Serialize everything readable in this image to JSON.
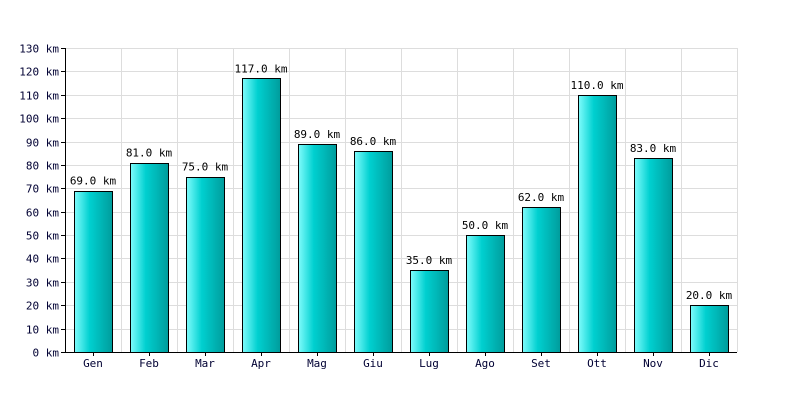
{
  "chart_data": {
    "type": "bar",
    "categories": [
      "Gen",
      "Feb",
      "Mar",
      "Apr",
      "Mag",
      "Giu",
      "Lug",
      "Ago",
      "Set",
      "Ott",
      "Nov",
      "Dic"
    ],
    "values": [
      69,
      81,
      75,
      117,
      89,
      86,
      35,
      50,
      62,
      110,
      83,
      20
    ],
    "data_labels": [
      "69.0 km",
      "81.0 km",
      "75.0 km",
      "117.0 km",
      "89.0 km",
      "86.0 km",
      "35.0 km",
      "50.0 km",
      "62.0 km",
      "110.0 km",
      "83.0 km",
      "20.0 km"
    ],
    "y_ticks": [
      0,
      10,
      20,
      30,
      40,
      50,
      60,
      70,
      80,
      90,
      100,
      110,
      120,
      130
    ],
    "y_tick_labels": [
      "0 km",
      "10 km",
      "20 km",
      "30 km",
      "40 km",
      "50 km",
      "60 km",
      "70 km",
      "80 km",
      "90 km",
      "100 km",
      "110 km",
      "120 km",
      "130 km"
    ],
    "ylim": [
      0,
      130
    ],
    "grid": true,
    "colors": {
      "bar_light": "#7ffcfc",
      "bar_main": "#00d0d0",
      "bar_dark": "#009c9c",
      "grid": "#dddddd",
      "axis": "#000000",
      "tick_text": "#000033"
    }
  }
}
